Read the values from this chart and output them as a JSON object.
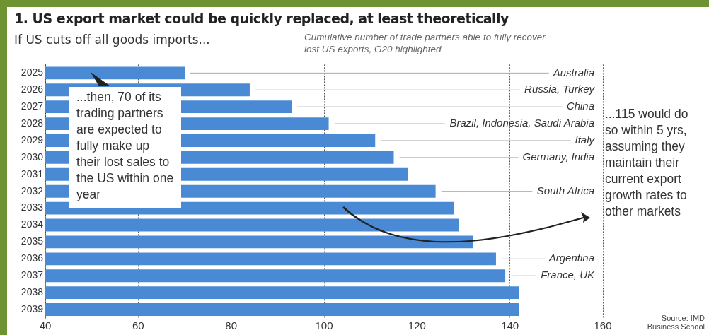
{
  "chart_data": {
    "type": "bar",
    "orientation": "horizontal",
    "title": "1. US export market could be quickly replaced, at least theoretically",
    "subtitle": "If US cuts off all goods imports...",
    "categories": [
      "2025",
      "2026",
      "2027",
      "2028",
      "2029",
      "2030",
      "2031",
      "2032",
      "2033",
      "2034",
      "2035",
      "2036",
      "2037",
      "2038",
      "2039"
    ],
    "series": [
      {
        "color": "#4a8ad4",
        "values": [
          70,
          84,
          93,
          101,
          111,
          115,
          118,
          124,
          128,
          129,
          132,
          137,
          139,
          142,
          142
        ]
      }
    ],
    "xlim": [
      40,
      160
    ],
    "xticks": [
      40,
      60,
      80,
      100,
      120,
      140,
      160
    ],
    "grid": "x",
    "legend": false,
    "annotations": [
      {
        "text": "Australia",
        "x": 70,
        "y": "2025"
      },
      {
        "text": "Russia, Turkey",
        "x": 84,
        "y": "2026"
      },
      {
        "text": "China",
        "x": 93,
        "y": "2027"
      },
      {
        "text": "Brazil, Indonesia, Saudi Arabia",
        "x": 101,
        "y": "2028"
      },
      {
        "text": "Italy",
        "x": 111,
        "y": "2029"
      },
      {
        "text": "Germany, India",
        "x": 115,
        "y": "2030"
      },
      {
        "text": "South Africa",
        "x": 124,
        "y": "2032"
      },
      {
        "text": "Argentina",
        "x": 137,
        "y": "2036"
      },
      {
        "text": "France, UK",
        "x": 139,
        "y": "2037"
      },
      "Cumulative number of trade partners able to fully recover lost US exports, G20 highlighted",
      "...then, 70 of its trading partners are expected to fully make up their lost sales to the US within one year",
      "...115 would do so within 5 yrs, assuming they maintain their current export growth rates to other markets",
      "Source: IMD Business School"
    ]
  }
}
